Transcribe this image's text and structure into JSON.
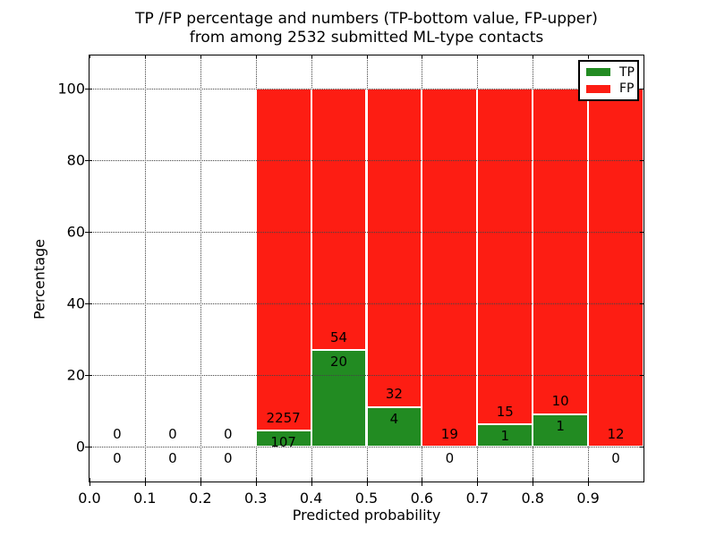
{
  "chart_data": {
    "type": "bar",
    "stacked": true,
    "normalized_to_percent": true,
    "title_line1": "TP /FP percentage and numbers (TP-bottom value, FP-upper)",
    "title_line2": "from among 2532 submitted ML-type contacts",
    "xlabel": "Predicted probability",
    "ylabel": "Percentage",
    "xlim": [
      0.0,
      1.0
    ],
    "ylim": [
      -9.7,
      109.3
    ],
    "grid": true,
    "xticks": {
      "values": [
        0.0,
        0.1,
        0.2,
        0.3,
        0.4,
        0.5,
        0.6,
        0.7,
        0.8,
        0.9
      ],
      "labels": [
        "0.0",
        "0.1",
        "0.2",
        "0.3",
        "0.4",
        "0.5",
        "0.6",
        "0.7",
        "0.8",
        "0.9"
      ]
    },
    "yticks": {
      "values": [
        0,
        20,
        40,
        60,
        80,
        100
      ],
      "labels": [
        "0",
        "20",
        "40",
        "60",
        "80",
        "100"
      ]
    },
    "colors": {
      "tp": "#228b22",
      "fp": "#fd1d13"
    },
    "legend": {
      "position": "upper right",
      "entries": [
        {
          "label": "TP",
          "color": "#228b22"
        },
        {
          "label": "FP",
          "color": "#fd1d13"
        }
      ]
    },
    "bins": [
      {
        "x0": 0.0,
        "x1": 0.1,
        "tp": 0,
        "fp": 0
      },
      {
        "x0": 0.1,
        "x1": 0.2,
        "tp": 0,
        "fp": 0
      },
      {
        "x0": 0.2,
        "x1": 0.3,
        "tp": 0,
        "fp": 0
      },
      {
        "x0": 0.3,
        "x1": 0.4,
        "tp": 107,
        "fp": 2257
      },
      {
        "x0": 0.4,
        "x1": 0.5,
        "tp": 20,
        "fp": 54
      },
      {
        "x0": 0.5,
        "x1": 0.6,
        "tp": 4,
        "fp": 32
      },
      {
        "x0": 0.6,
        "x1": 0.7,
        "tp": 0,
        "fp": 19
      },
      {
        "x0": 0.7,
        "x1": 0.8,
        "tp": 1,
        "fp": 15
      },
      {
        "x0": 0.8,
        "x1": 0.9,
        "tp": 1,
        "fp": 10
      },
      {
        "x0": 0.9,
        "x1": 1.0,
        "tp": 0,
        "fp": 12
      }
    ]
  }
}
